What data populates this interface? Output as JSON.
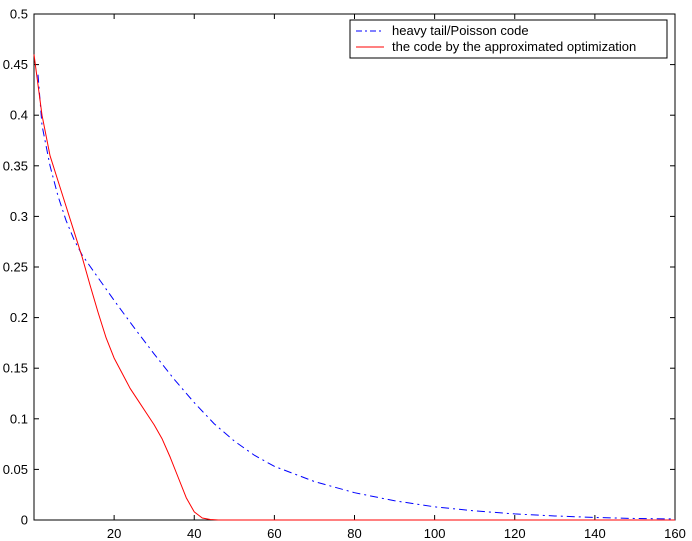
{
  "chart_data": {
    "type": "line",
    "title": "",
    "xlabel": "",
    "ylabel": "",
    "xlim": [
      0,
      160
    ],
    "ylim": [
      0,
      0.5
    ],
    "xticks": [
      20,
      40,
      60,
      80,
      100,
      120,
      140,
      160
    ],
    "xtick_labels": [
      "20",
      "40",
      "60",
      "80",
      "100",
      "120",
      "140",
      "160"
    ],
    "yticks": [
      0,
      0.05,
      0.1,
      0.15,
      0.2,
      0.25,
      0.3,
      0.35,
      0.4,
      0.45,
      0.5
    ],
    "ytick_labels": [
      "0",
      "0.05",
      "0.1",
      "0.15",
      "0.2",
      "0.25",
      "0.3",
      "0.35",
      "0.4",
      "0.45",
      "0.5"
    ],
    "grid": false,
    "legend_position": "top-right",
    "series": [
      {
        "name": "heavy tail/Poisson code",
        "color": "#0000ff",
        "style": "dash-dot",
        "x": [
          1,
          2,
          4,
          6,
          8,
          10,
          12,
          15,
          20,
          25,
          30,
          35,
          40,
          45,
          50,
          55,
          60,
          70,
          80,
          90,
          100,
          110,
          120,
          130,
          140,
          150,
          160
        ],
        "y": [
          0.44,
          0.39,
          0.35,
          0.32,
          0.296,
          0.277,
          0.262,
          0.245,
          0.217,
          0.19,
          0.164,
          0.139,
          0.116,
          0.095,
          0.078,
          0.064,
          0.053,
          0.038,
          0.027,
          0.019,
          0.013,
          0.009,
          0.006,
          0.004,
          0.0025,
          0.0015,
          0.001
        ]
      },
      {
        "name": "the code by the approximated optimization",
        "color": "#ff0000",
        "style": "solid",
        "x": [
          0,
          2,
          4,
          6,
          8,
          10,
          12,
          14,
          16,
          18,
          20,
          22,
          24,
          26,
          28,
          30,
          32,
          34,
          36,
          38,
          40,
          42,
          44,
          46,
          48,
          50,
          60,
          80,
          100,
          120,
          140,
          160
        ],
        "y": [
          0.46,
          0.4,
          0.36,
          0.335,
          0.31,
          0.285,
          0.26,
          0.232,
          0.205,
          0.18,
          0.16,
          0.145,
          0.13,
          0.118,
          0.106,
          0.094,
          0.08,
          0.062,
          0.042,
          0.022,
          0.008,
          0.002,
          0.0005,
          0,
          0,
          0,
          0,
          0,
          0,
          0,
          0,
          0
        ]
      }
    ]
  }
}
